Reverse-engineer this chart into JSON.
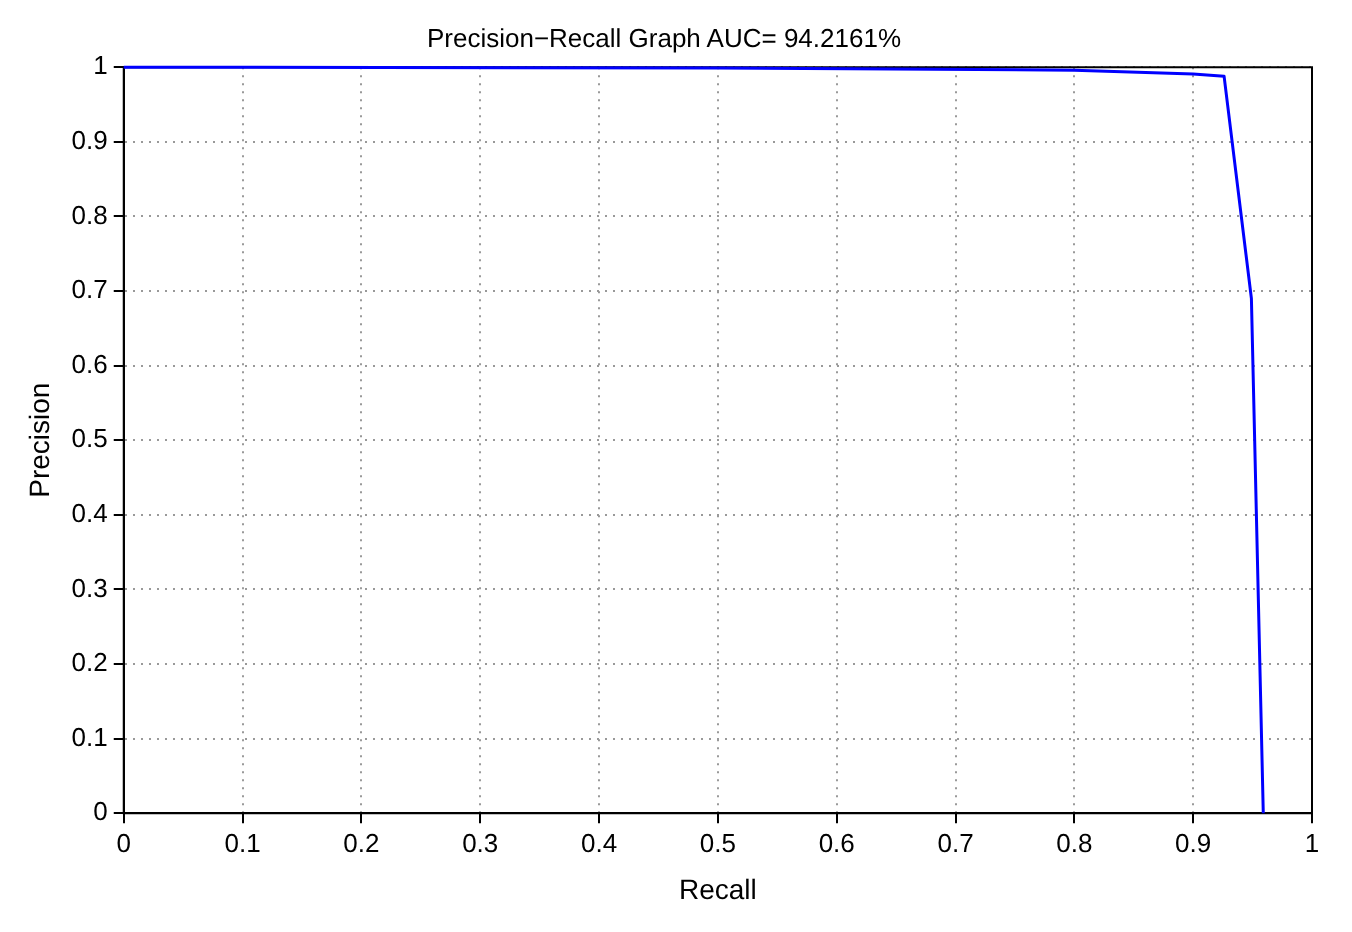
{
  "chart_data": {
    "type": "line",
    "title": "Precision−Recall Graph AUC= 94.2161%",
    "xlabel": "Recall",
    "ylabel": "Precision",
    "x": [
      0,
      0.5,
      0.8,
      0.9,
      0.926,
      0.949,
      0.959
    ],
    "series": [
      {
        "color": "#0000ff",
        "values": [
          1,
          0.999,
          0.996,
          0.991,
          0.988,
          0.69,
          0
        ]
      }
    ],
    "xlim": [
      0,
      1
    ],
    "ylim": [
      0,
      1
    ],
    "xticks": [
      0,
      0.1,
      0.2,
      0.3,
      0.4,
      0.5,
      0.6,
      0.7,
      0.8,
      0.9,
      1
    ],
    "yticks": [
      0,
      0.1,
      0.2,
      0.3,
      0.4,
      0.5,
      0.6,
      0.7,
      0.8,
      0.9,
      1
    ],
    "grid": true,
    "legend": false,
    "marker": "none",
    "line_style": "solid"
  }
}
